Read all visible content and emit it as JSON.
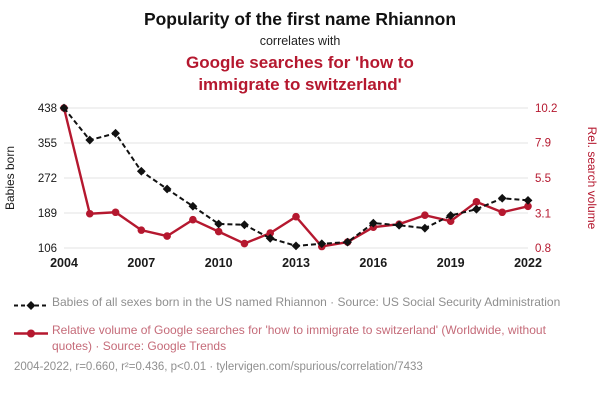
{
  "header": {
    "title": "Popularity of the first name Rhiannon",
    "subtitle": "correlates with",
    "red_title_line1": "Google searches for 'how to",
    "red_title_line2": "immigrate to switzerland'"
  },
  "colors": {
    "accent_red": "#b5182f",
    "series_black": "#111111",
    "grid": "#e3e3e3",
    "tick_text": "#1a1a1a",
    "muted_text": "#8f8f8f",
    "legend_red_text": "#c56b79"
  },
  "chart_data": {
    "type": "line",
    "x": [
      2004,
      2005,
      2006,
      2007,
      2008,
      2009,
      2010,
      2011,
      2012,
      2013,
      2014,
      2015,
      2016,
      2017,
      2018,
      2019,
      2020,
      2021,
      2022
    ],
    "x_ticks": [
      2004,
      2007,
      2010,
      2013,
      2016,
      2019,
      2022
    ],
    "left_axis": {
      "label": "Babies born",
      "ticks": [
        438,
        355,
        272,
        189,
        106
      ],
      "range": [
        106,
        438
      ]
    },
    "right_axis": {
      "label": "Rel. search volume",
      "ticks": [
        10.2,
        7.9,
        5.5,
        3.1,
        0.8
      ],
      "range": [
        0.8,
        10.2
      ]
    },
    "grid": true,
    "legend_position": "bottom",
    "series": [
      {
        "name": "Babies of all sexes born in the US named Rhiannon",
        "axis": "right_is_false_left",
        "yaxis": "left",
        "style": "dashed-diamond",
        "color": "#111111",
        "values": [
          438,
          362,
          378,
          288,
          246,
          205,
          163,
          161,
          129,
          111,
          116,
          120,
          165,
          160,
          153,
          183,
          198,
          224,
          219
        ]
      },
      {
        "name": "Relative volume of Google searches for 'how to immigrate to switzerland'",
        "yaxis": "right",
        "style": "solid-circle",
        "color": "#b5182f",
        "values": [
          10.2,
          3.1,
          3.2,
          2.0,
          1.6,
          2.7,
          1.9,
          1.1,
          1.8,
          2.9,
          0.9,
          1.2,
          2.2,
          2.4,
          3.0,
          2.6,
          3.9,
          3.2,
          3.6
        ]
      }
    ]
  },
  "legend": [
    {
      "label": "Babies of all sexes born in the US named Rhiannon · Source: US Social Security Administration"
    },
    {
      "label": "Relative volume of Google searches for 'how to immigrate to switzerland' (Worldwide, without quotes) · Source: Google Trends"
    }
  ],
  "footer": {
    "text": "2004-2022, r=0.660, r²=0.436, p<0.01 · tylervigen.com/spurious/correlation/7433"
  }
}
